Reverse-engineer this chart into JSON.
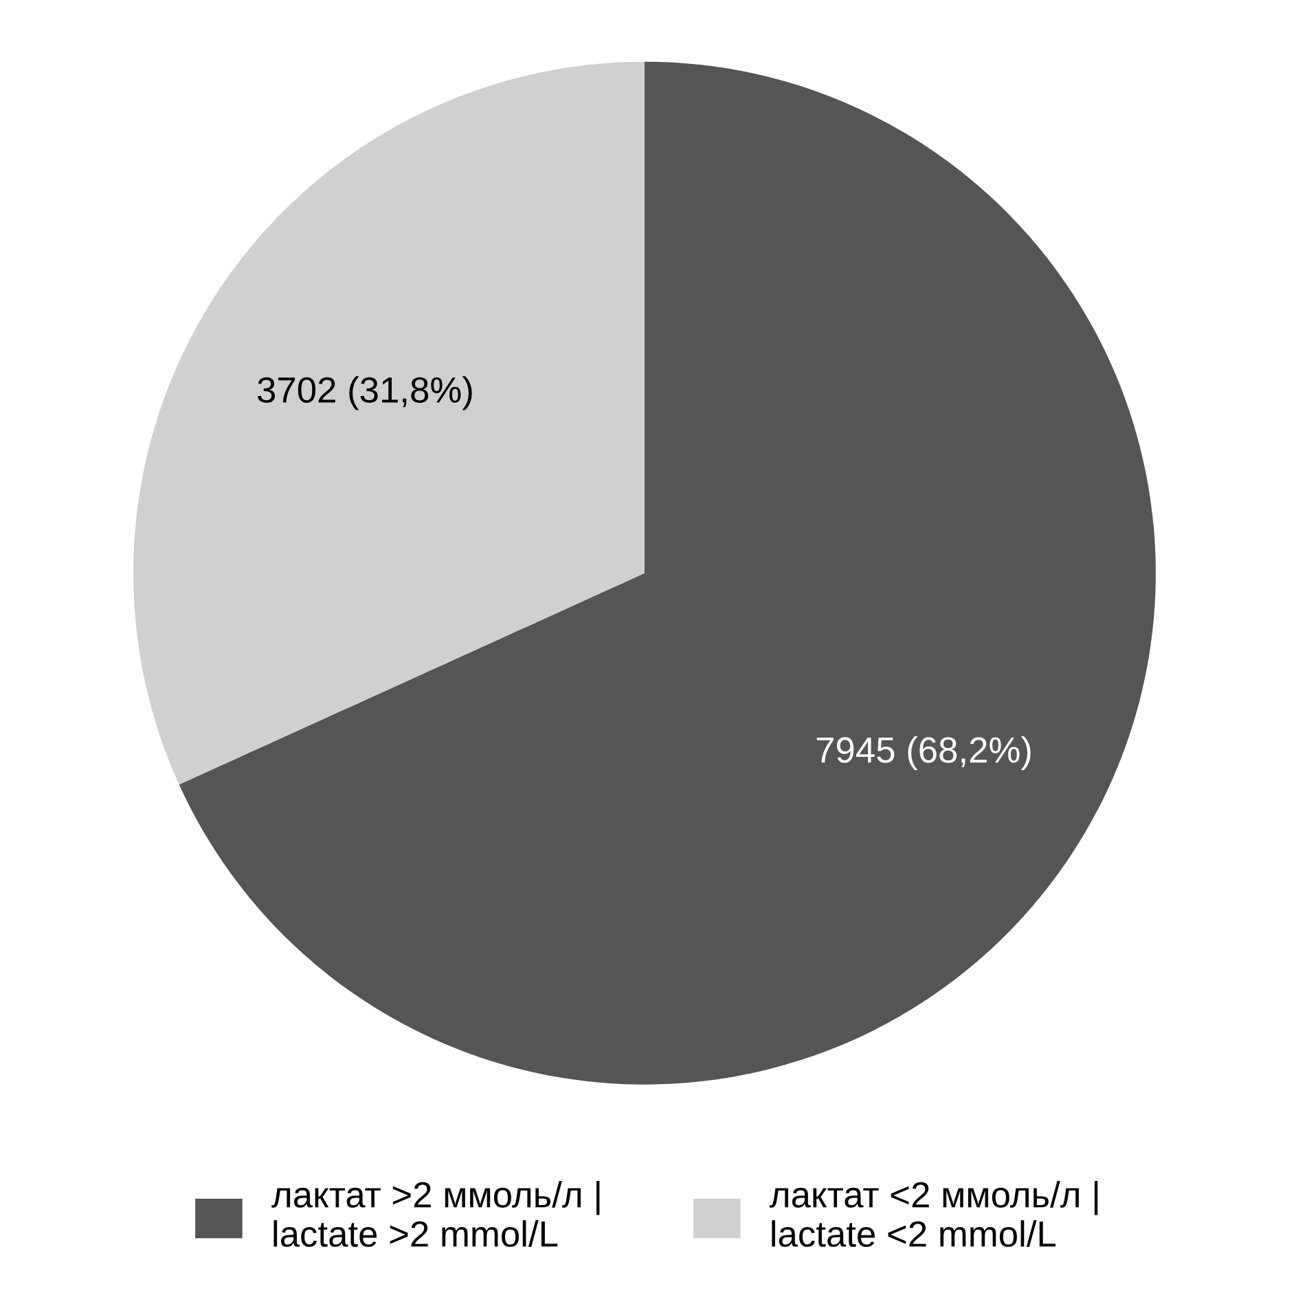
{
  "chart_data": {
    "type": "pie",
    "categories": [
      "лактат >2 ммоль/л |\nlactate >2 mmol/L",
      "лактат <2 ммоль/л |\nlactate <2 mmol/L"
    ],
    "values": [
      7945,
      3702
    ],
    "colors": [
      "#555555",
      "#d0d0d0"
    ],
    "value_labels": [
      "7945 (68,2%)",
      "3702 (31,8%)"
    ],
    "legend": "bottom"
  }
}
